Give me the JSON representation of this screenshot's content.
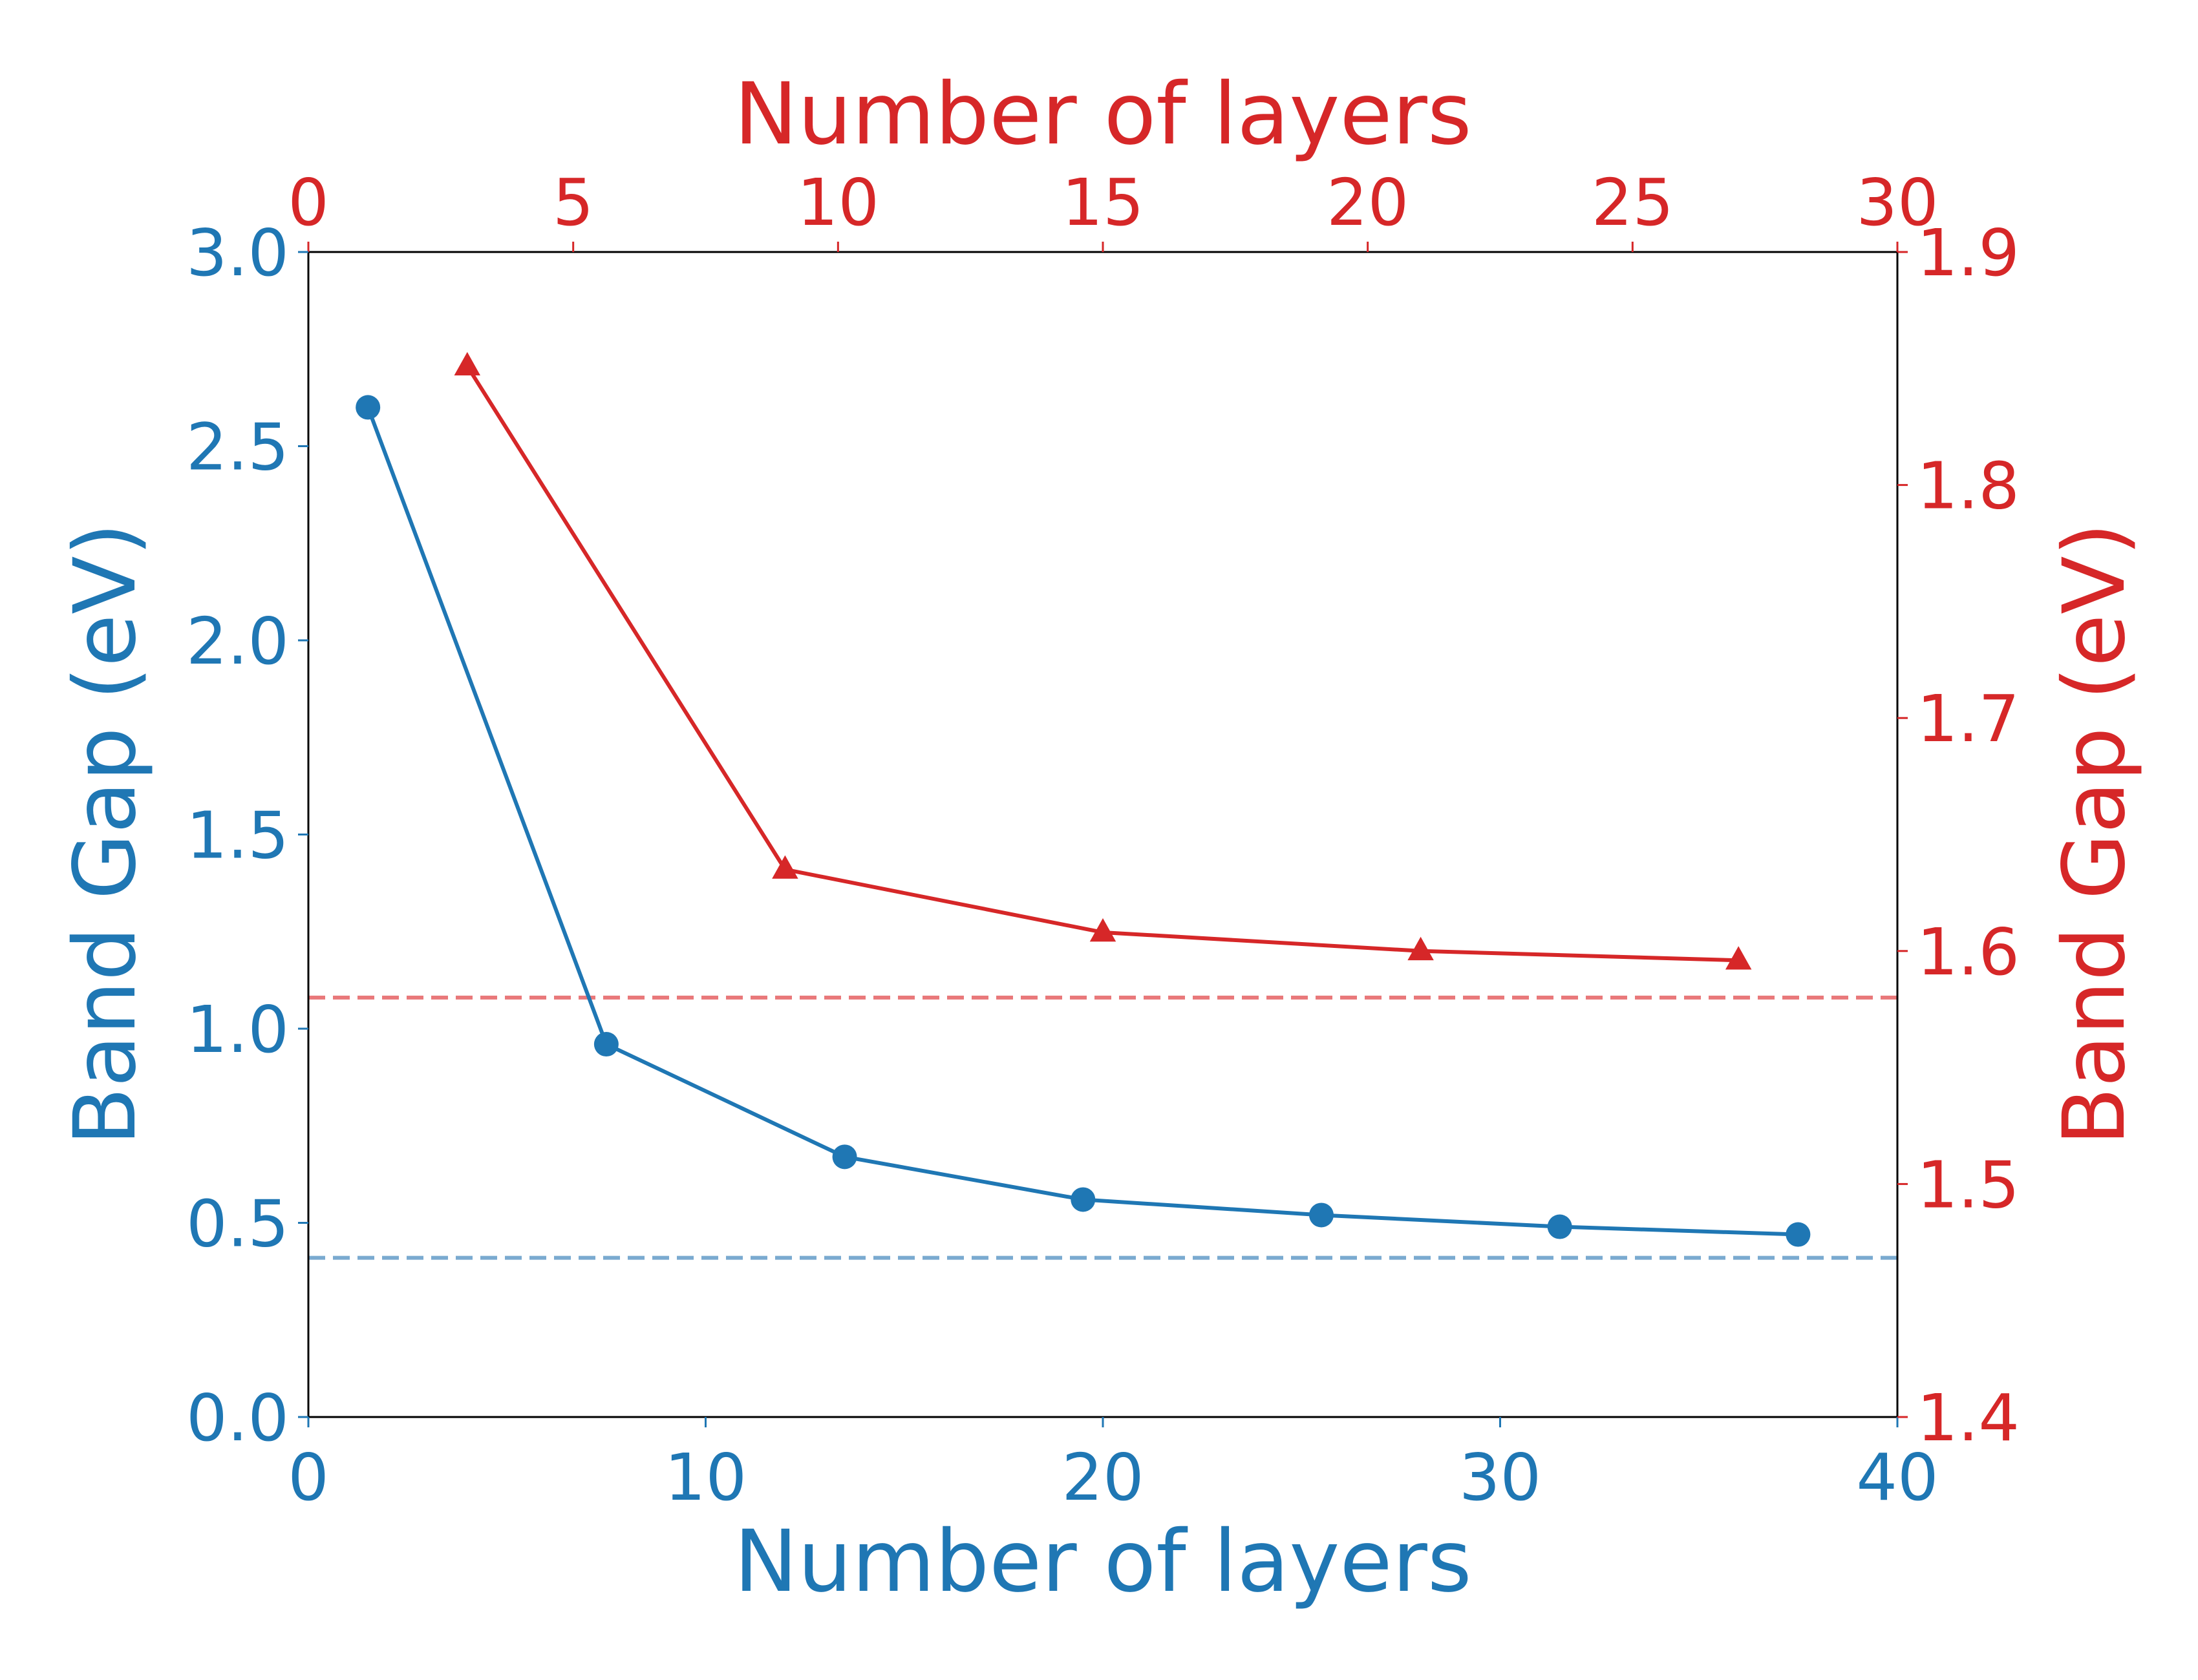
{
  "chart_data": {
    "type": "line",
    "colors": {
      "blue": "#1f77b4",
      "red": "#d62728",
      "blue_ref": "#7aaad0",
      "red_ref": "#e9787a",
      "frame": "#000000"
    },
    "axes": {
      "bottom": {
        "label": "Number of layers",
        "range": [
          0,
          40
        ],
        "ticks": [
          0,
          10,
          20,
          30,
          40
        ],
        "color": "blue"
      },
      "top": {
        "label": "Number of layers",
        "range": [
          0,
          30
        ],
        "ticks": [
          0,
          5,
          10,
          15,
          20,
          25,
          30
        ],
        "color": "red"
      },
      "left": {
        "label": "Band Gap (eV)",
        "range": [
          0.0,
          3.0
        ],
        "ticks": [
          "0.0",
          "0.5",
          "1.0",
          "1.5",
          "2.0",
          "2.5",
          "3.0"
        ],
        "color": "blue"
      },
      "right": {
        "label": "Band Gap (eV)",
        "range": [
          1.4,
          1.9
        ],
        "ticks": [
          "1.4",
          "1.5",
          "1.6",
          "1.7",
          "1.8",
          "1.9"
        ],
        "color": "red"
      }
    },
    "grid": false,
    "series": [
      {
        "axes": [
          "bottom",
          "left"
        ],
        "marker": "circle",
        "color": "blue",
        "x": [
          1.5,
          7.5,
          13.5,
          19.5,
          25.5,
          31.5,
          37.5
        ],
        "y": [
          2.6,
          0.96,
          0.67,
          0.56,
          0.52,
          0.49,
          0.47
        ]
      },
      {
        "axes": [
          "top",
          "right"
        ],
        "marker": "triangle",
        "color": "red",
        "x": [
          3,
          9,
          15,
          21,
          27
        ],
        "y": [
          1.851,
          1.635,
          1.608,
          1.6,
          1.596
        ]
      }
    ],
    "reference_lines": [
      {
        "axis": "left",
        "value": 0.41,
        "style": "dashed",
        "color": "blue_ref"
      },
      {
        "axis": "right",
        "value": 1.58,
        "style": "dashed",
        "color": "red_ref"
      }
    ]
  }
}
